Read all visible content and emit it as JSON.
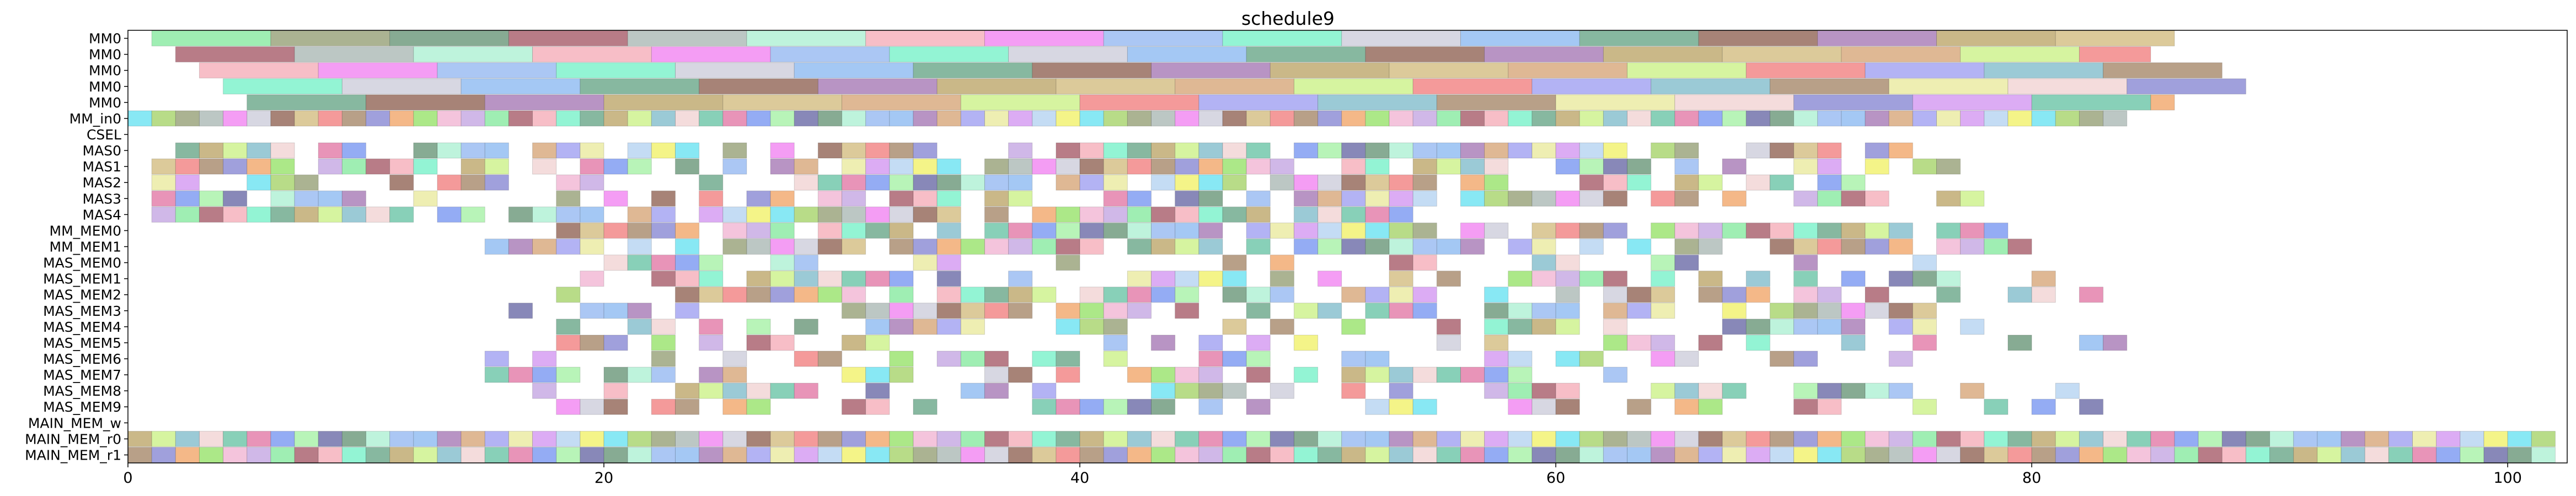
{
  "chart_data": {
    "type": "gantt",
    "title": "schedule9",
    "xlabel": "",
    "ylabel": "",
    "xlim": [
      0,
      102.5
    ],
    "xticks": [
      0,
      20,
      40,
      60,
      80,
      100
    ],
    "grid": false,
    "rows": [
      "MM0",
      "MM0",
      "MM0",
      "MM0",
      "MM0",
      "MM_in0",
      "CSEL",
      "MAS0",
      "MAS1",
      "MAS2",
      "MAS3",
      "MAS4",
      "MM_MEM0",
      "MM_MEM1",
      "MAS_MEM0",
      "MAS_MEM1",
      "MAS_MEM2",
      "MAS_MEM3",
      "MAS_MEM4",
      "MAS_MEM5",
      "MAS_MEM6",
      "MAS_MEM7",
      "MAS_MEM8",
      "MAS_MEM9",
      "MAIN_MEM_w",
      "MAIN_MEM_r0",
      "MAIN_MEM_r1"
    ],
    "palette": [
      "#7fe89a",
      "#8f9a6e",
      "#5f8f6f",
      "#a0505f",
      "#a6b4b0",
      "#a8efd0",
      "#f4a8b4",
      "#f07cf0",
      "#8fb4f0",
      "#6ff0c6",
      "#c9c9d8",
      "#86b6f0",
      "#5fa080",
      "#8a5a4a",
      "#a070b0",
      "#b8a060",
      "#d0b878",
      "#d4a070",
      "#c8f080",
      "#f07878",
      "#9a9af0",
      "#7ab8c8",
      "#a08060",
      "#e8e898",
      "#f0d0d0",
      "#8080d0",
      "#d090f0",
      "#60c0a0",
      "#f0a060",
      "#b0d0f0",
      "#e070a0",
      "#90e060",
      "#f0f060",
      "#7090f0",
      "#f0b0d0",
      "#60e0f0",
      "#a0f0a0",
      "#c0a0e0",
      "#a0d060",
      "#6060a0"
    ],
    "long_rows": [
      {
        "row": 0,
        "start": 1,
        "stop": 86,
        "dur": 5
      },
      {
        "row": 1,
        "start": 2,
        "stop": 85,
        "dur": 5
      },
      {
        "row": 2,
        "start": 3,
        "stop": 88,
        "dur": 5
      },
      {
        "row": 3,
        "start": 4,
        "stop": 89,
        "dur": 5
      },
      {
        "row": 4,
        "start": 5,
        "stop": 86,
        "dur": 5
      }
    ],
    "short_rows": [
      {
        "row": 5,
        "start": 0,
        "stop": 84.5,
        "density": 1.0
      },
      {
        "row": 7,
        "start": 1,
        "stop": 75,
        "density": 0.78
      },
      {
        "row": 8,
        "start": 1,
        "stop": 77,
        "density": 0.72
      },
      {
        "row": 9,
        "start": 1,
        "stop": 75,
        "density": 0.68
      },
      {
        "row": 10,
        "start": 1,
        "stop": 78,
        "density": 0.66
      },
      {
        "row": 11,
        "start": 1,
        "stop": 54,
        "density": 0.85
      },
      {
        "row": 12,
        "start": 15,
        "stop": 79,
        "density": 0.8
      },
      {
        "row": 13,
        "start": 15,
        "stop": 80,
        "density": 0.82
      },
      {
        "row": 14,
        "start": 18,
        "stop": 76,
        "density": 0.45
      },
      {
        "row": 15,
        "start": 16,
        "stop": 83,
        "density": 0.6
      },
      {
        "row": 16,
        "start": 16,
        "stop": 84,
        "density": 0.55
      },
      {
        "row": 17,
        "start": 16,
        "stop": 76,
        "density": 0.55
      },
      {
        "row": 18,
        "start": 16,
        "stop": 78,
        "density": 0.48
      },
      {
        "row": 19,
        "start": 16,
        "stop": 84,
        "density": 0.45
      },
      {
        "row": 20,
        "start": 15,
        "stop": 77,
        "density": 0.52
      },
      {
        "row": 21,
        "start": 15,
        "stop": 63,
        "density": 0.58
      },
      {
        "row": 22,
        "start": 16,
        "stop": 83,
        "density": 0.5
      },
      {
        "row": 23,
        "start": 16,
        "stop": 83,
        "density": 0.45
      },
      {
        "row": 25,
        "start": 0,
        "stop": 102.5,
        "density": 1.0
      },
      {
        "row": 26,
        "start": 0,
        "stop": 102.5,
        "density": 1.0
      }
    ]
  }
}
